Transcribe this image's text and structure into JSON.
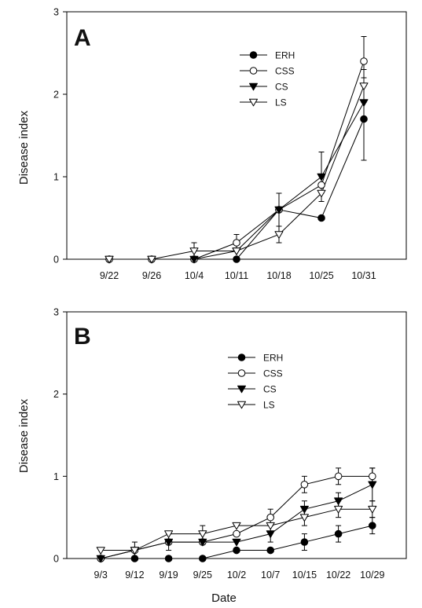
{
  "chart_data": [
    {
      "type": "line",
      "panel_label": "A",
      "categories": [
        "9/22",
        "9/26",
        "10/4",
        "10/11",
        "10/18",
        "10/25",
        "10/31"
      ],
      "ylabel": "Disease index",
      "ylim": [
        0,
        3
      ],
      "yticks": [
        0,
        1,
        2,
        3
      ],
      "grid": false,
      "legend": "upper-center",
      "series": [
        {
          "name": "ERH",
          "marker": "filled-circle",
          "values": [
            0,
            0,
            0,
            0,
            0.6,
            0.5,
            1.7
          ],
          "errors": [
            0,
            0,
            0,
            0,
            0,
            0,
            0.5
          ]
        },
        {
          "name": "CSS",
          "marker": "open-circle",
          "values": [
            0,
            0,
            0,
            0.2,
            0.6,
            0.9,
            2.4
          ],
          "errors": [
            0,
            0,
            0,
            0.1,
            0.2,
            0.1,
            0.3
          ]
        },
        {
          "name": "CS",
          "marker": "filled-triangle-down",
          "values": [
            0,
            0,
            0,
            0.1,
            0.6,
            1.0,
            1.9
          ],
          "errors": [
            0,
            0,
            0,
            0,
            0.2,
            0.3,
            0.2
          ]
        },
        {
          "name": "LS",
          "marker": "open-triangle-down",
          "values": [
            0,
            0,
            0.1,
            0.1,
            0.3,
            0.8,
            2.1
          ],
          "errors": [
            0,
            0,
            0.1,
            0,
            0.1,
            0.1,
            0.2
          ]
        }
      ]
    },
    {
      "type": "line",
      "panel_label": "B",
      "categories": [
        "9/3",
        "9/12",
        "9/19",
        "9/25",
        "10/2",
        "10/7",
        "10/15",
        "10/22",
        "10/29"
      ],
      "xlabel": "Date",
      "ylabel": "Disease index",
      "ylim": [
        0,
        3
      ],
      "yticks": [
        0,
        1,
        2,
        3
      ],
      "grid": false,
      "legend": "upper-center",
      "series": [
        {
          "name": "ERH",
          "marker": "filled-circle",
          "values": [
            0,
            0,
            0,
            0,
            0.1,
            0.1,
            0.2,
            0.3,
            0.4
          ],
          "errors": [
            0,
            0,
            0,
            0,
            0,
            0,
            0.1,
            0.1,
            0.1
          ]
        },
        {
          "name": "CSS",
          "marker": "open-circle",
          "values": [
            0,
            0.1,
            0.2,
            0.2,
            0.3,
            0.5,
            0.9,
            1.0,
            1.0
          ],
          "errors": [
            0,
            0,
            0,
            0,
            0,
            0.1,
            0.1,
            0.1,
            0.1
          ]
        },
        {
          "name": "CS",
          "marker": "filled-triangle-down",
          "values": [
            0,
            0.1,
            0.2,
            0.2,
            0.2,
            0.3,
            0.6,
            0.7,
            0.9
          ],
          "errors": [
            0,
            0.1,
            0.1,
            0,
            0,
            0.1,
            0.1,
            0.1,
            0.2
          ]
        },
        {
          "name": "LS",
          "marker": "open-triangle-down",
          "values": [
            0.1,
            0.1,
            0.3,
            0.3,
            0.4,
            0.4,
            0.5,
            0.6,
            0.6
          ],
          "errors": [
            0,
            0,
            0,
            0.1,
            0,
            0,
            0.1,
            0.1,
            0.1
          ]
        }
      ]
    }
  ]
}
